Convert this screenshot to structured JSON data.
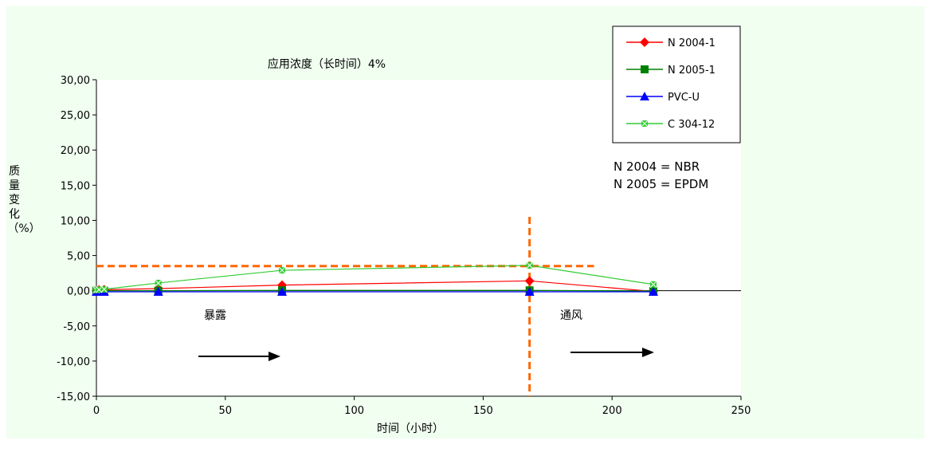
{
  "chart_data": {
    "type": "line",
    "title": "应用浓度（长时间）4%",
    "xlabel": "时间（小时）",
    "ylabel_lines": [
      "质",
      "量",
      "变",
      "化",
      "（%）"
    ],
    "xlim": [
      0,
      250
    ],
    "ylim": [
      -15,
      30
    ],
    "x_ticks": [
      0,
      50,
      100,
      150,
      200,
      250
    ],
    "y_ticks": [
      30,
      25,
      20,
      15,
      10,
      5,
      0,
      -5,
      -10,
      -15
    ],
    "y_tick_labels": [
      "30,00",
      "25,00",
      "20,00",
      "15,00",
      "10,00",
      "5,00",
      "0,00",
      "-5,00",
      "-10,00",
      "-15,00"
    ],
    "grid": false,
    "legend_position": "top-right",
    "series": [
      {
        "name": "N 2004-1",
        "color": "#ff0000",
        "marker": "diamond",
        "x": [
          0,
          1,
          3,
          24,
          72,
          168,
          216
        ],
        "y": [
          0,
          0.1,
          0.15,
          0.3,
          0.8,
          1.4,
          -0.1
        ]
      },
      {
        "name": "N 2005-1",
        "color": "#008000",
        "marker": "square",
        "x": [
          0,
          1,
          3,
          24,
          72,
          168,
          216
        ],
        "y": [
          0,
          0,
          0,
          0,
          0.05,
          0.05,
          -0.05
        ]
      },
      {
        "name": "PVC-U",
        "color": "#0000ff",
        "marker": "triangle",
        "x": [
          0,
          1,
          3,
          24,
          72,
          168,
          216
        ],
        "y": [
          -0.15,
          -0.15,
          -0.15,
          -0.15,
          -0.15,
          -0.15,
          -0.15
        ]
      },
      {
        "name": "C 304-12",
        "color": "#33cc33",
        "marker": "x-square",
        "x": [
          0,
          1,
          3,
          24,
          72,
          168,
          216
        ],
        "y": [
          0.1,
          0.15,
          0.2,
          1.1,
          2.9,
          3.6,
          0.9
        ]
      }
    ],
    "reference_lines": {
      "horizontal_y": 3.5,
      "horizontal_x_range": [
        0,
        193
      ],
      "vertical_x": 168,
      "vertical_y_range": [
        -15,
        10.5
      ],
      "color": "#ff6600"
    },
    "annotations": {
      "nbr": {
        "text": "N 2004 = NBR",
        "color": "#ff6600"
      },
      "epdm": {
        "text": "N 2005 = EPDM",
        "color": "#33aa33"
      },
      "exposure": {
        "text": "暴露"
      },
      "ventilation": {
        "text": "通风"
      }
    },
    "colors": {
      "outer_background": "#f0fff0",
      "plot_background": "#ffffff"
    }
  }
}
